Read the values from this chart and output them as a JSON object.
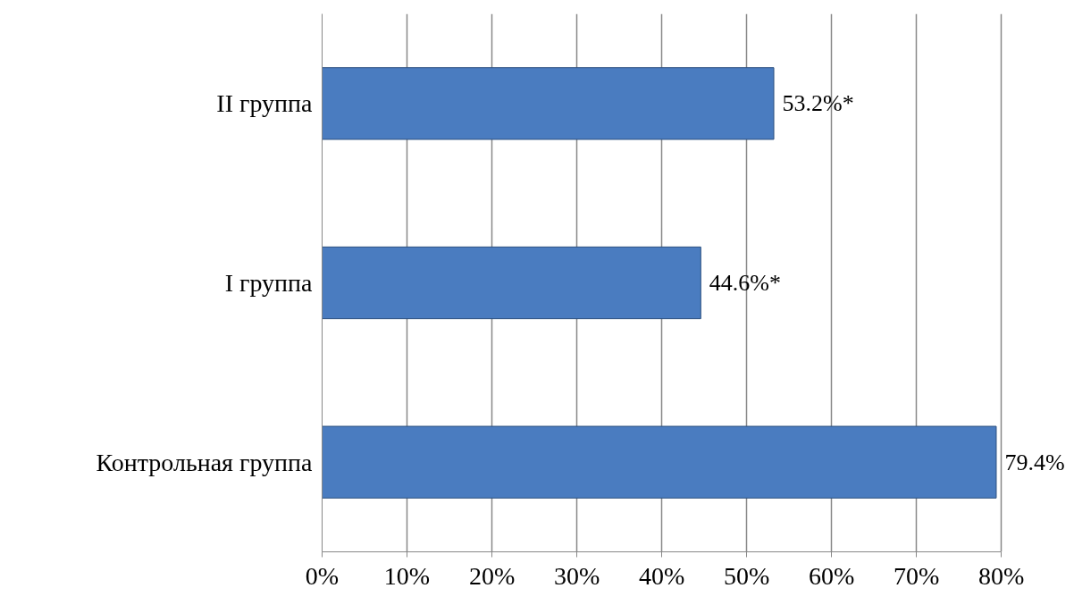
{
  "chart_data": {
    "type": "bar",
    "orientation": "horizontal",
    "categories": [
      "II группа",
      "I группа",
      "Контрольная группа"
    ],
    "values": [
      53.2,
      44.6,
      79.4
    ],
    "color": "#4a7cc0",
    "value_labels": [
      "53.2%*",
      "44.6%*",
      "79.4%"
    ],
    "xlim": [
      0,
      80
    ],
    "xticks": [
      {
        "value": 0,
        "label": "0%"
      },
      {
        "value": 10,
        "label": "10%"
      },
      {
        "value": 20,
        "label": "20%"
      },
      {
        "value": 30,
        "label": "30%"
      },
      {
        "value": 40,
        "label": "40%"
      },
      {
        "value": 50,
        "label": "50%"
      },
      {
        "value": 60,
        "label": "60%"
      },
      {
        "value": 70,
        "label": "70%"
      },
      {
        "value": 80,
        "label": "80%"
      }
    ],
    "grid": "x"
  }
}
